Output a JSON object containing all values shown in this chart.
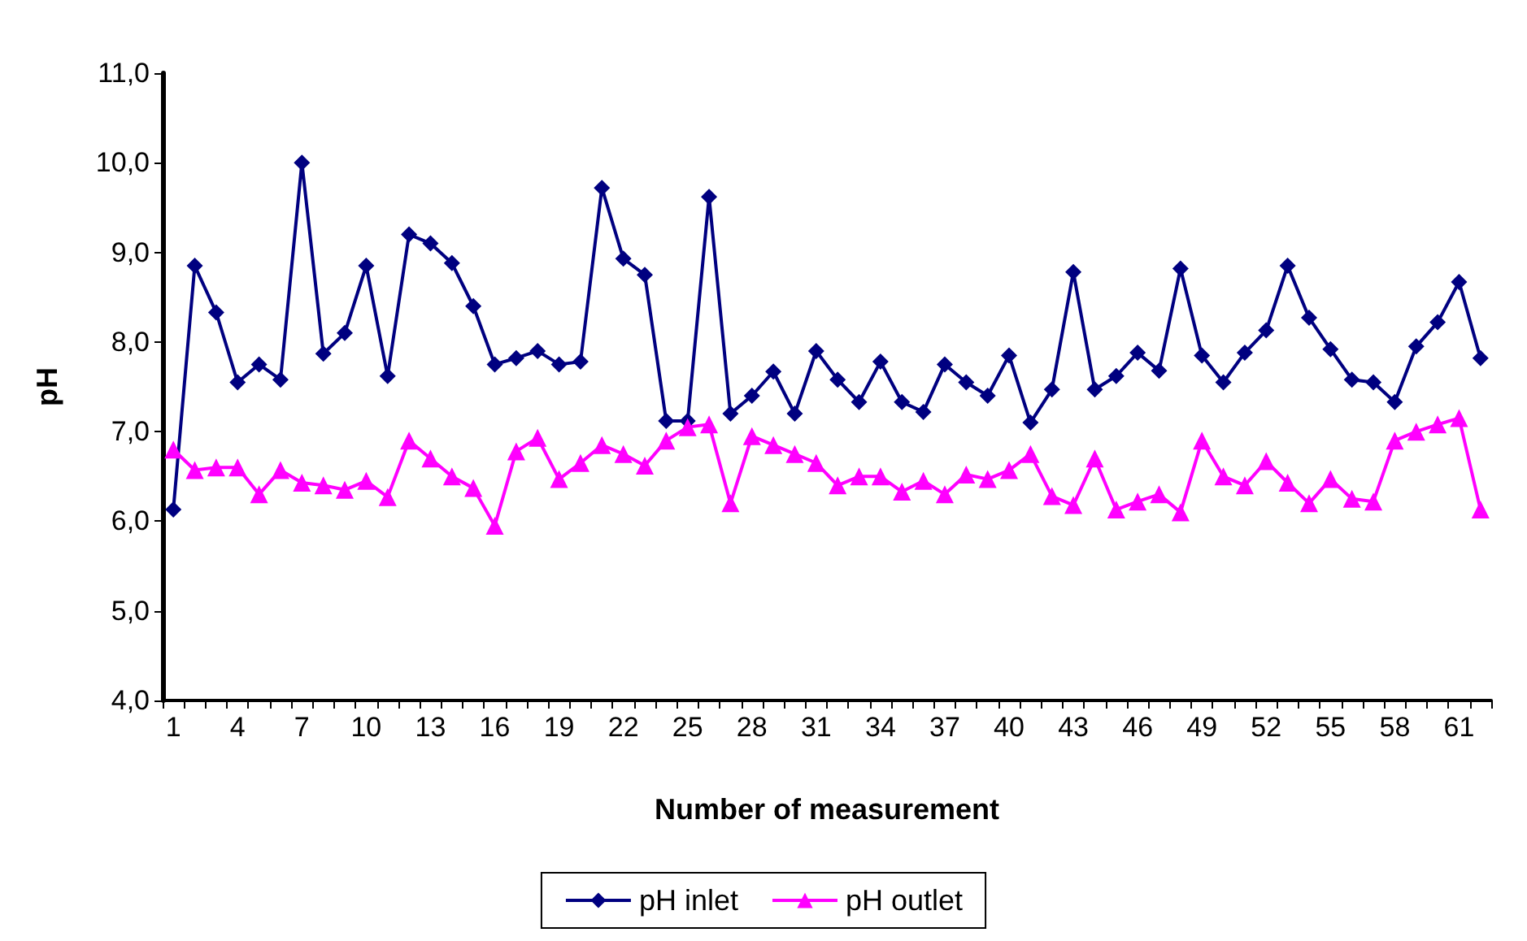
{
  "chart_data": {
    "type": "line",
    "xlabel": "Number of measurement",
    "ylabel": "pH",
    "categories": [
      "1",
      null,
      null,
      "4",
      null,
      null,
      "7",
      null,
      null,
      "10",
      null,
      null,
      "13",
      null,
      null,
      "16",
      null,
      null,
      "19",
      null,
      null,
      "22",
      null,
      null,
      "25",
      null,
      null,
      "28",
      null,
      null,
      "31",
      null,
      null,
      "34",
      null,
      null,
      "37",
      null,
      null,
      "40",
      null,
      null,
      "43",
      null,
      null,
      "46",
      null,
      null,
      "49",
      null,
      null,
      "52",
      null,
      null,
      "55",
      null,
      null,
      "58",
      null,
      null,
      "61",
      null
    ],
    "series": [
      {
        "name": "pH inlet",
        "color": "#000080",
        "marker": "diamond",
        "values": [
          6.13,
          8.85,
          8.33,
          7.55,
          7.75,
          7.58,
          10.0,
          7.87,
          8.1,
          8.85,
          7.62,
          9.2,
          9.1,
          8.88,
          8.4,
          7.75,
          7.82,
          7.9,
          7.75,
          7.78,
          9.72,
          8.93,
          8.75,
          7.12,
          7.12,
          9.62,
          7.2,
          7.4,
          7.67,
          7.2,
          7.9,
          7.58,
          7.33,
          7.78,
          7.33,
          7.22,
          7.75,
          7.55,
          7.4,
          7.85,
          7.1,
          7.47,
          8.78,
          7.47,
          7.62,
          7.88,
          7.68,
          8.82,
          7.85,
          7.55,
          7.88,
          8.13,
          8.85,
          8.27,
          7.92,
          7.58,
          7.55,
          7.33,
          7.95,
          8.22,
          8.67,
          7.82
        ]
      },
      {
        "name": "pH outlet",
        "color": "#ff00ff",
        "marker": "triangle",
        "values": [
          6.8,
          6.57,
          6.6,
          6.6,
          6.3,
          6.57,
          6.43,
          6.4,
          6.35,
          6.45,
          6.27,
          6.9,
          6.7,
          6.5,
          6.37,
          5.95,
          6.78,
          6.93,
          6.47,
          6.65,
          6.85,
          6.75,
          6.62,
          6.9,
          7.05,
          7.08,
          6.2,
          6.95,
          6.85,
          6.75,
          6.65,
          6.4,
          6.5,
          6.5,
          6.33,
          6.45,
          6.3,
          6.52,
          6.47,
          6.57,
          6.75,
          6.28,
          6.18,
          6.7,
          6.13,
          6.22,
          6.3,
          6.1,
          6.9,
          6.5,
          6.4,
          6.67,
          6.43,
          6.2,
          6.47,
          6.25,
          6.22,
          6.9,
          7.0,
          7.08,
          7.15,
          6.13
        ]
      }
    ],
    "ylim": [
      4,
      11
    ],
    "yticks": [
      {
        "value": 4,
        "label": "4,0"
      },
      {
        "value": 5,
        "label": "5,0"
      },
      {
        "value": 6,
        "label": "6,0"
      },
      {
        "value": 7,
        "label": "7,0"
      },
      {
        "value": 8,
        "label": "8,0"
      },
      {
        "value": 9,
        "label": "9,0"
      },
      {
        "value": 10,
        "label": "10,0"
      },
      {
        "value": 11,
        "label": "11,0"
      }
    ],
    "grid": false,
    "legend": "bottom",
    "line_style": "solid"
  }
}
